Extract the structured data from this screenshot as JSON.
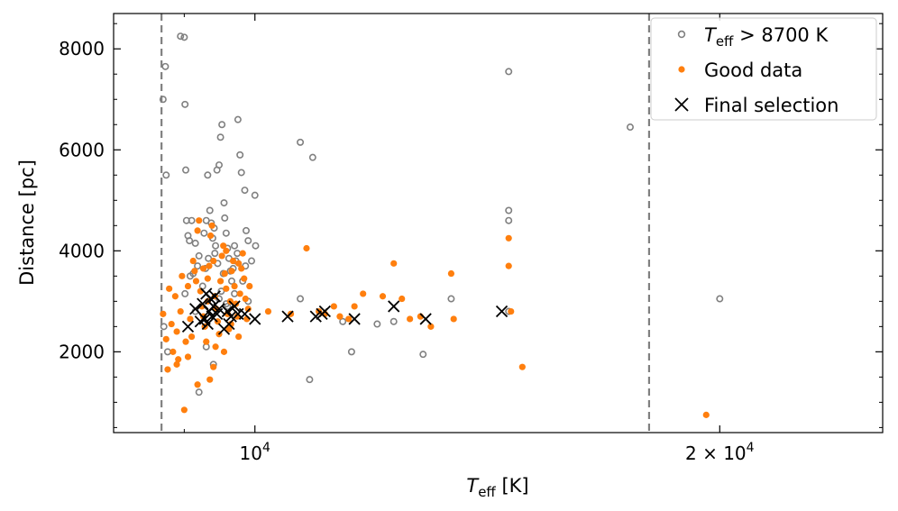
{
  "chart_data": {
    "type": "scatter",
    "xscale": "log",
    "xlim": [
      8100,
      25500
    ],
    "ylim": [
      400,
      8700
    ],
    "x_ticks": [
      {
        "value": 10000,
        "base": "10",
        "exp": "4"
      },
      {
        "value": 20000,
        "base": "2 × 10",
        "exp": "4"
      }
    ],
    "y_ticks": [
      {
        "value": 2000,
        "label": "2000"
      },
      {
        "value": 4000,
        "label": "4000"
      },
      {
        "value": 6000,
        "label": "6000"
      },
      {
        "value": 8000,
        "label": "8000"
      }
    ],
    "xlabel": {
      "main": "T",
      "sub": "eff",
      "rest": " [K]"
    },
    "ylabel": "Distance [pc]",
    "vlines": [
      8700,
      18000
    ],
    "colors": {
      "grey": "#808080",
      "orange": "#ff7f0e",
      "black": "#000000",
      "dash": "#808080"
    },
    "legend": {
      "position": "upper right",
      "entries": [
        {
          "label_main": "T",
          "label_sub": "eff",
          "label_rest": " > 8700 K",
          "marker": "open-circle"
        },
        {
          "label": "Good data",
          "marker": "filled-circle"
        },
        {
          "label": "Final selection",
          "marker": "x"
        }
      ]
    },
    "series": [
      {
        "name": "Teff > 8700 K",
        "marker": "open-circle",
        "points": [
          [
            8720,
            7000
          ],
          [
            8750,
            7650
          ],
          [
            8760,
            5500
          ],
          [
            8730,
            2500
          ],
          [
            8780,
            2000
          ],
          [
            8950,
            8250
          ],
          [
            9000,
            8230
          ],
          [
            9010,
            6900
          ],
          [
            9020,
            5600
          ],
          [
            9030,
            4600
          ],
          [
            9050,
            4300
          ],
          [
            9080,
            3500
          ],
          [
            9010,
            3150
          ],
          [
            9100,
            4600
          ],
          [
            9150,
            4150
          ],
          [
            9180,
            3700
          ],
          [
            9200,
            3900
          ],
          [
            9250,
            3300
          ],
          [
            9300,
            4600
          ],
          [
            9320,
            5500
          ],
          [
            9350,
            4800
          ],
          [
            9370,
            4550
          ],
          [
            9390,
            4250
          ],
          [
            9410,
            4450
          ],
          [
            9430,
            4100
          ],
          [
            9450,
            5600
          ],
          [
            9480,
            5700
          ],
          [
            9500,
            6250
          ],
          [
            9520,
            6500
          ],
          [
            9550,
            4950
          ],
          [
            9560,
            4650
          ],
          [
            9580,
            4350
          ],
          [
            9600,
            4050
          ],
          [
            9620,
            3850
          ],
          [
            9640,
            3600
          ],
          [
            9660,
            3400
          ],
          [
            9420,
            3950
          ],
          [
            9460,
            3750
          ],
          [
            9510,
            3200
          ],
          [
            9580,
            2950
          ],
          [
            9700,
            4100
          ],
          [
            9720,
            3800
          ],
          [
            9750,
            6600
          ],
          [
            9780,
            5900
          ],
          [
            9800,
            5550
          ],
          [
            9850,
            5200
          ],
          [
            9870,
            4400
          ],
          [
            9900,
            4200
          ],
          [
            9950,
            3800
          ],
          [
            10000,
            5100
          ],
          [
            10010,
            4100
          ],
          [
            9400,
            1750
          ],
          [
            9200,
            1200
          ],
          [
            9300,
            2100
          ],
          [
            9150,
            2800
          ],
          [
            9480,
            3050
          ],
          [
            9600,
            2900
          ],
          [
            9700,
            3150
          ],
          [
            9820,
            3400
          ],
          [
            9900,
            3000
          ],
          [
            10700,
            6150
          ],
          [
            10900,
            5850
          ],
          [
            10700,
            3050
          ],
          [
            10850,
            1450
          ],
          [
            11400,
            2600
          ],
          [
            11550,
            2000
          ],
          [
            12000,
            2550
          ],
          [
            12300,
            2600
          ],
          [
            12850,
            1950
          ],
          [
            13400,
            3050
          ],
          [
            14600,
            7550
          ],
          [
            14600,
            4800
          ],
          [
            14600,
            4600
          ],
          [
            14600,
            2800
          ],
          [
            17500,
            6450
          ],
          [
            20000,
            3050
          ],
          [
            9070,
            4200
          ],
          [
            9120,
            3550
          ],
          [
            9270,
            4350
          ],
          [
            9290,
            3650
          ],
          [
            9330,
            3850
          ],
          [
            9540,
            3550
          ],
          [
            9680,
            3650
          ],
          [
            9740,
            3950
          ],
          [
            9860,
            3700
          ]
        ]
      },
      {
        "name": "Good data",
        "marker": "filled-circle",
        "points": [
          [
            8720,
            2750
          ],
          [
            8760,
            2250
          ],
          [
            8780,
            1650
          ],
          [
            8800,
            3250
          ],
          [
            8830,
            2550
          ],
          [
            8850,
            2000
          ],
          [
            8880,
            3100
          ],
          [
            8900,
            2400
          ],
          [
            8920,
            1850
          ],
          [
            8950,
            2800
          ],
          [
            8970,
            3500
          ],
          [
            9000,
            850
          ],
          [
            9020,
            2200
          ],
          [
            9050,
            3300
          ],
          [
            9080,
            2650
          ],
          [
            9100,
            2300
          ],
          [
            9120,
            3800
          ],
          [
            9140,
            3600
          ],
          [
            9160,
            3400
          ],
          [
            9180,
            4400
          ],
          [
            9200,
            4600
          ],
          [
            9220,
            3200
          ],
          [
            9240,
            2900
          ],
          [
            9260,
            2700
          ],
          [
            9280,
            2500
          ],
          [
            9300,
            2200
          ],
          [
            9320,
            3000
          ],
          [
            9340,
            3700
          ],
          [
            9360,
            4300
          ],
          [
            9380,
            4500
          ],
          [
            9400,
            3800
          ],
          [
            9420,
            3100
          ],
          [
            9440,
            2850
          ],
          [
            9460,
            2600
          ],
          [
            9480,
            2350
          ],
          [
            9500,
            3400
          ],
          [
            9520,
            3900
          ],
          [
            9540,
            4100
          ],
          [
            9560,
            3550
          ],
          [
            9580,
            3250
          ],
          [
            9600,
            2750
          ],
          [
            9620,
            2450
          ],
          [
            9640,
            3000
          ],
          [
            9660,
            3600
          ],
          [
            9680,
            3800
          ],
          [
            9700,
            3300
          ],
          [
            9720,
            2950
          ],
          [
            9740,
            2700
          ],
          [
            9760,
            2300
          ],
          [
            9780,
            3150
          ],
          [
            9800,
            3650
          ],
          [
            9820,
            3950
          ],
          [
            9840,
            3450
          ],
          [
            9860,
            3050
          ],
          [
            9880,
            2650
          ],
          [
            9900,
            2850
          ],
          [
            9920,
            3300
          ],
          [
            9400,
            1700
          ],
          [
            9350,
            1450
          ],
          [
            9180,
            1350
          ],
          [
            9050,
            1900
          ],
          [
            8900,
            1750
          ],
          [
            10200,
            2800
          ],
          [
            10550,
            2750
          ],
          [
            10800,
            4050
          ],
          [
            11000,
            2800
          ],
          [
            11100,
            2750
          ],
          [
            11250,
            2900
          ],
          [
            11350,
            2700
          ],
          [
            11500,
            2650
          ],
          [
            11600,
            2900
          ],
          [
            11750,
            3150
          ],
          [
            12100,
            3100
          ],
          [
            12300,
            3750
          ],
          [
            12450,
            3050
          ],
          [
            12600,
            2650
          ],
          [
            12800,
            2700
          ],
          [
            13000,
            2500
          ],
          [
            13400,
            3550
          ],
          [
            13450,
            2650
          ],
          [
            14600,
            4250
          ],
          [
            14600,
            3700
          ],
          [
            14650,
            2800
          ],
          [
            14900,
            1700
          ],
          [
            19600,
            750
          ],
          [
            9430,
            2100
          ],
          [
            9550,
            2000
          ],
          [
            9650,
            2550
          ],
          [
            9260,
            3650
          ],
          [
            9320,
            3450
          ],
          [
            9580,
            4000
          ],
          [
            9760,
            3750
          ]
        ]
      },
      {
        "name": "Final selection",
        "marker": "x",
        "points": [
          [
            9050,
            2500
          ],
          [
            9150,
            2850
          ],
          [
            9250,
            2950
          ],
          [
            9280,
            2650
          ],
          [
            9300,
            3150
          ],
          [
            9320,
            2550
          ],
          [
            9340,
            2800
          ],
          [
            9360,
            3050
          ],
          [
            9380,
            2700
          ],
          [
            9400,
            2900
          ],
          [
            9420,
            3100
          ],
          [
            9450,
            2750
          ],
          [
            9550,
            2450
          ],
          [
            9600,
            2800
          ],
          [
            9650,
            2700
          ],
          [
            9700,
            2900
          ],
          [
            9750,
            2750
          ],
          [
            9850,
            2750
          ],
          [
            10000,
            2650
          ],
          [
            10500,
            2700
          ],
          [
            10950,
            2700
          ],
          [
            11050,
            2750
          ],
          [
            11100,
            2800
          ],
          [
            11600,
            2650
          ],
          [
            12300,
            2900
          ],
          [
            12900,
            2650
          ],
          [
            14450,
            2800
          ],
          [
            9220,
            2600
          ],
          [
            9480,
            2850
          ],
          [
            9620,
            2550
          ]
        ]
      }
    ]
  }
}
